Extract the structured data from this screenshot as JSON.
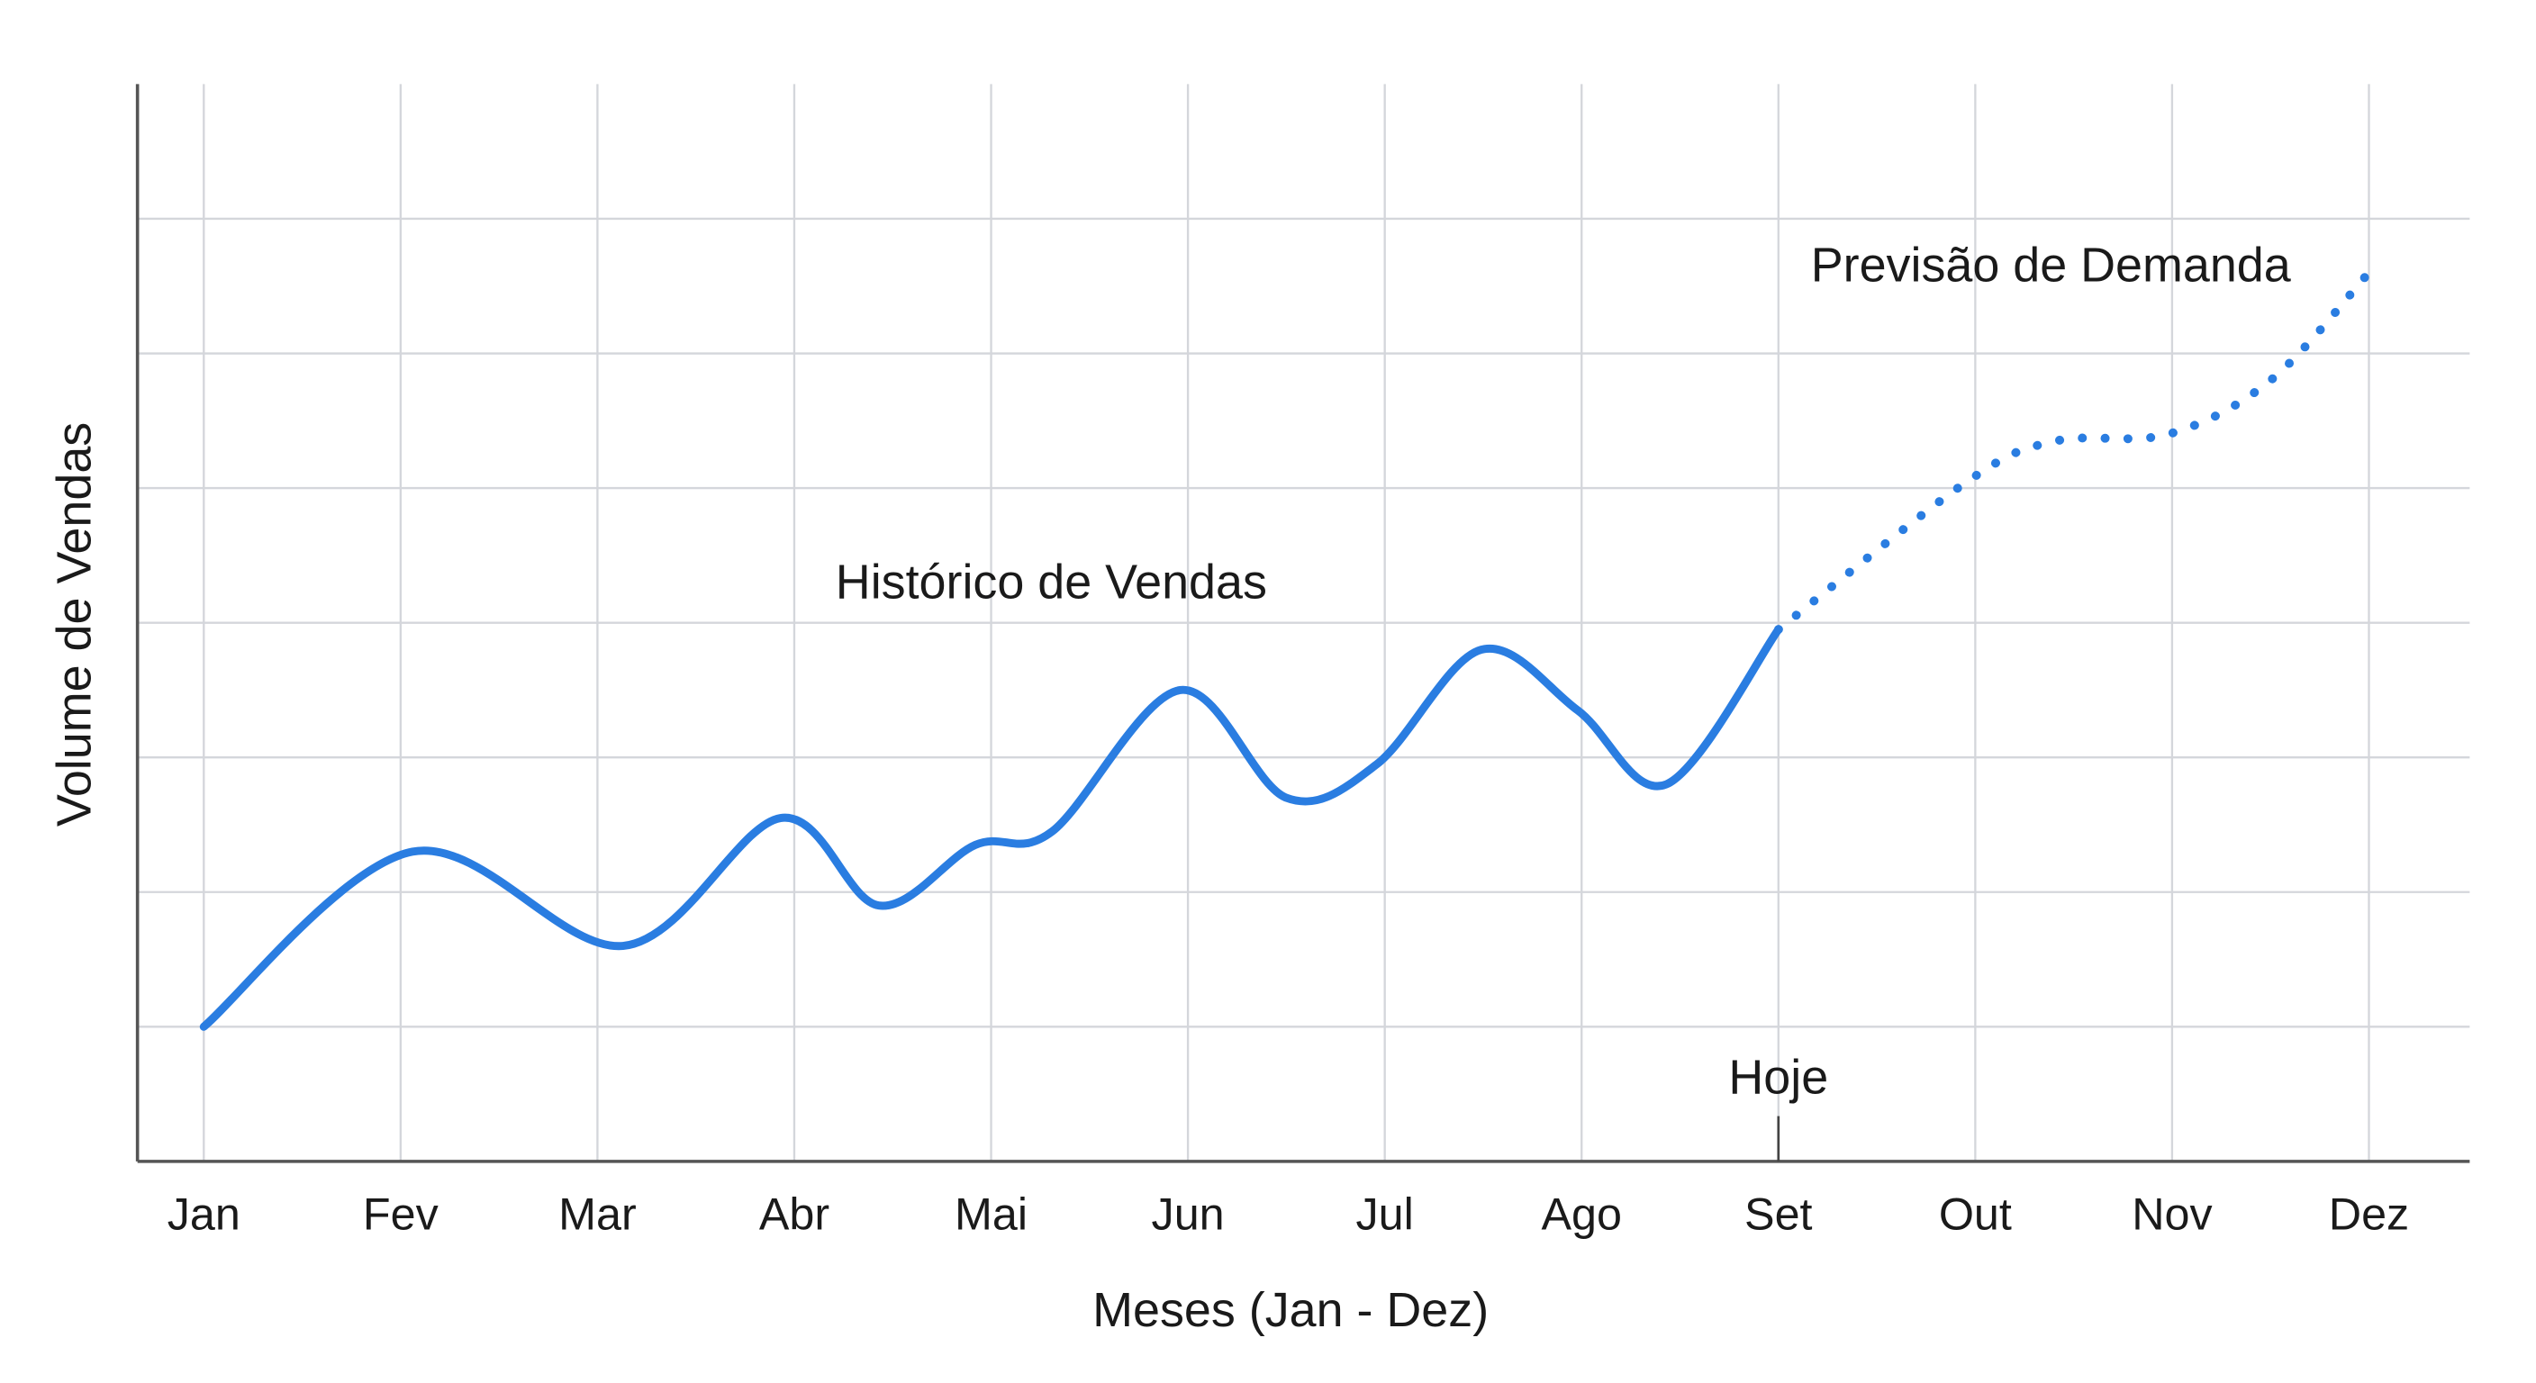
{
  "chart_data": {
    "type": "line",
    "title": "",
    "xlabel": "Meses (Jan - Dez)",
    "ylabel": "Volume de Vendas",
    "categories": [
      "Jan",
      "Fev",
      "Mar",
      "Abr",
      "Mai",
      "Jun",
      "Jul",
      "Ago",
      "Set",
      "Out",
      "Nov",
      "Dez"
    ],
    "xlim": [
      1,
      12
    ],
    "ylim": [
      0,
      8
    ],
    "y_tick_labels_shown": false,
    "grid": true,
    "series": [
      {
        "name": "Histórico de Vendas",
        "style": "solid",
        "color": "#2a7de1",
        "points": [
          [
            1,
            1.0
          ],
          [
            2.06,
            2.3
          ],
          [
            3.13,
            1.6
          ],
          [
            3.93,
            2.55
          ],
          [
            4.43,
            1.9
          ],
          [
            4.92,
            2.35
          ],
          [
            5.31,
            2.45
          ],
          [
            5.96,
            3.5
          ],
          [
            6.5,
            2.7
          ],
          [
            6.96,
            2.95
          ],
          [
            7.49,
            3.8
          ],
          [
            7.98,
            3.35
          ],
          [
            8.43,
            2.8
          ],
          [
            9,
            3.95
          ]
        ]
      },
      {
        "name": "Previsão de Demanda",
        "style": "dotted",
        "color": "#2a7de1",
        "points": [
          [
            9,
            3.95
          ],
          [
            9.96,
            5.05
          ],
          [
            10.41,
            5.35
          ],
          [
            10.98,
            5.4
          ],
          [
            11.5,
            5.8
          ],
          [
            12,
            6.6
          ]
        ]
      }
    ],
    "annotations": {
      "today_label": "Hoje",
      "today_month": 9
    }
  }
}
